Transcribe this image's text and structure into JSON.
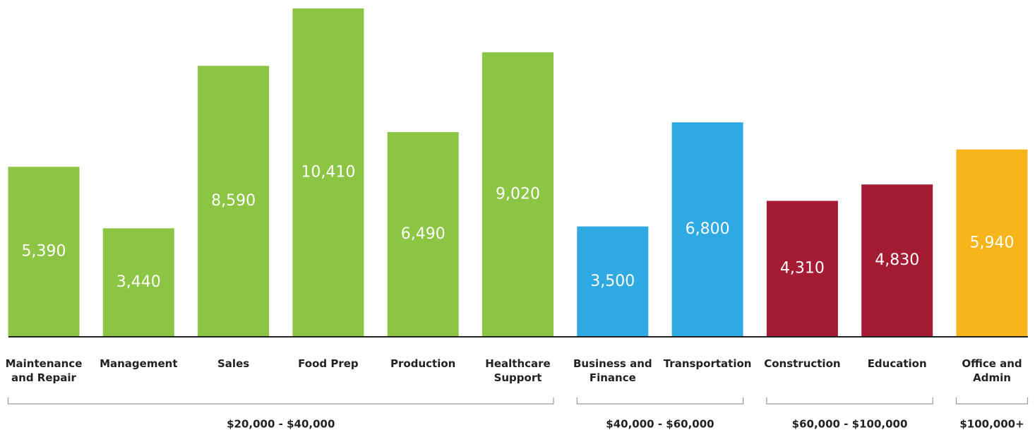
{
  "chart_data": {
    "type": "bar",
    "categories": [
      "Maintenance\nand Repair",
      "Management",
      "Sales",
      "Food Prep",
      "Production",
      "Healthcare\nSupport",
      "Business and\nFinance",
      "Transportation",
      "Construction",
      "Education",
      "Office and\nAdmin"
    ],
    "series": [
      {
        "name": "$20,000 - $40,000",
        "color": "#8cc443",
        "values": [
          5390,
          3440,
          8590,
          10410,
          6490,
          9020,
          null,
          null,
          null,
          null,
          null
        ],
        "value_labels": [
          "5,390",
          "3,440",
          "8,590",
          "10,410",
          "6,490",
          "9,020",
          null,
          null,
          null,
          null,
          null
        ]
      },
      {
        "name": "$40,000 - $60,000",
        "color": "#2ea9e1",
        "values": [
          null,
          null,
          null,
          null,
          null,
          null,
          3500,
          6800,
          null,
          null,
          null
        ],
        "value_labels": [
          null,
          null,
          null,
          null,
          null,
          null,
          "3,500",
          "6,800",
          null,
          null,
          null
        ]
      },
      {
        "name": "$60,000 - $100,000",
        "color": "#a31c33",
        "values": [
          null,
          null,
          null,
          null,
          null,
          null,
          null,
          null,
          4310,
          4830,
          null
        ],
        "value_labels": [
          null,
          null,
          null,
          null,
          null,
          null,
          null,
          null,
          "4,310",
          "4,830",
          null
        ]
      },
      {
        "name": "$100,000+",
        "color": "#f8b51b",
        "values": [
          null,
          null,
          null,
          null,
          null,
          null,
          null,
          null,
          null,
          null,
          5940
        ],
        "value_labels": [
          null,
          null,
          null,
          null,
          null,
          null,
          null,
          null,
          null,
          null,
          "5,940"
        ]
      }
    ]
  }
}
